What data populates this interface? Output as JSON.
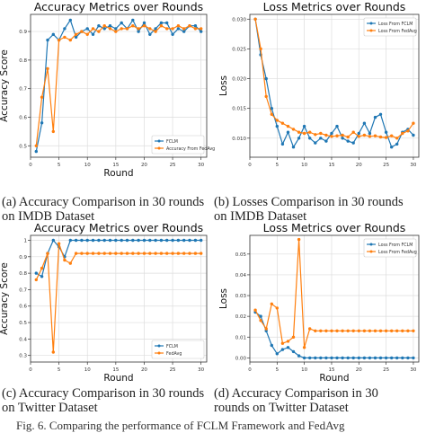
{
  "figure": {
    "captions": [
      {
        "line1": "(a) Accuracy Comparison in 30 rounds",
        "line2": "on IMDB Dataset"
      },
      {
        "line1": "(b) Losses Comparison in 30 rounds",
        "line2": "on IMDB Dataset"
      },
      {
        "line1": "(c) Accuracy Comparison in 30 rounds",
        "line2": "on Twitter Dataset"
      },
      {
        "line1": "(d)   Accuracy   Comparison   in   30",
        "line2": "rounds on Twitter Dataset"
      }
    ],
    "footer": "Fig. 6.  Comparing the performance of FCLM Framework and FedAvg"
  },
  "colors": {
    "fclm": "#1f77b4",
    "fedavg": "#ff7f0e"
  },
  "chart_data": [
    {
      "type": "line",
      "title": "Accuracy Metrics over Rounds",
      "xlabel": "Round",
      "ylabel": "Accuracy Score",
      "xlim": [
        0,
        31
      ],
      "ylim": [
        0.46,
        0.96
      ],
      "xticks": [
        0,
        5,
        10,
        15,
        20,
        25,
        30
      ],
      "yticks": [
        0.5,
        0.6,
        0.7,
        0.8,
        0.9
      ],
      "grid": true,
      "legend": "lower-right",
      "x": [
        1,
        2,
        3,
        4,
        5,
        6,
        7,
        8,
        9,
        10,
        11,
        12,
        13,
        14,
        15,
        16,
        17,
        18,
        19,
        20,
        21,
        22,
        23,
        24,
        25,
        26,
        27,
        28,
        29,
        30
      ],
      "series": [
        {
          "name": "FCLM",
          "color": "#1f77b4",
          "values": [
            0.48,
            0.58,
            0.87,
            0.89,
            0.87,
            0.91,
            0.94,
            0.88,
            0.9,
            0.91,
            0.89,
            0.92,
            0.91,
            0.92,
            0.91,
            0.93,
            0.91,
            0.94,
            0.9,
            0.93,
            0.89,
            0.91,
            0.93,
            0.93,
            0.89,
            0.91,
            0.9,
            0.92,
            0.92,
            0.9
          ]
        },
        {
          "name": "Accuracy From FedAvg",
          "color": "#ff7f0e",
          "values": [
            0.5,
            0.67,
            0.77,
            0.55,
            0.87,
            0.88,
            0.87,
            0.89,
            0.9,
            0.89,
            0.91,
            0.9,
            0.92,
            0.91,
            0.9,
            0.91,
            0.91,
            0.92,
            0.91,
            0.92,
            0.91,
            0.9,
            0.92,
            0.91,
            0.91,
            0.92,
            0.91,
            0.92,
            0.91,
            0.91
          ]
        }
      ]
    },
    {
      "type": "line",
      "title": "Loss Metrics over Rounds",
      "xlabel": "",
      "ylabel": "Loss",
      "xlim": [
        0,
        31
      ],
      "ylim": [
        0.0068,
        0.0308
      ],
      "xticks": [
        0,
        5,
        10,
        15,
        20,
        25,
        30
      ],
      "yticks": [
        0.01,
        0.015,
        0.02,
        0.025,
        0.03
      ],
      "ytick_labels": [
        "0.010",
        "0.015",
        "0.020",
        "0.025",
        "0.030"
      ],
      "grid": true,
      "legend": "top-right",
      "x": [
        1,
        2,
        3,
        4,
        5,
        6,
        7,
        8,
        9,
        10,
        11,
        12,
        13,
        14,
        15,
        16,
        17,
        18,
        19,
        20,
        21,
        22,
        23,
        24,
        25,
        26,
        27,
        28,
        29,
        30
      ],
      "series": [
        {
          "name": "Loss From FCLM",
          "color": "#1f77b4",
          "values": [
            0.03,
            0.024,
            0.02,
            0.015,
            0.012,
            0.009,
            0.011,
            0.0085,
            0.01,
            0.012,
            0.01,
            0.0092,
            0.01,
            0.0095,
            0.0108,
            0.012,
            0.01,
            0.0095,
            0.0092,
            0.0108,
            0.0125,
            0.0108,
            0.0135,
            0.014,
            0.011,
            0.0085,
            0.009,
            0.011,
            0.0115,
            0.0105
          ]
        },
        {
          "name": "Loss From FedAvg",
          "color": "#ff7f0e",
          "values": [
            0.03,
            0.025,
            0.017,
            0.014,
            0.013,
            0.0125,
            0.012,
            0.0115,
            0.011,
            0.0108,
            0.011,
            0.0106,
            0.0108,
            0.0105,
            0.0103,
            0.0104,
            0.0105,
            0.0102,
            0.011,
            0.0103,
            0.0105,
            0.0103,
            0.0104,
            0.0102,
            0.0101,
            0.0104,
            0.01,
            0.0108,
            0.0112,
            0.0125
          ]
        }
      ]
    },
    {
      "type": "line",
      "title": "Accuracy Metrics over Rounds",
      "xlabel": "Round",
      "ylabel": "Accuracy Score",
      "xlim": [
        0,
        31
      ],
      "ylim": [
        0.26,
        1.03
      ],
      "xticks": [
        0,
        5,
        10,
        15,
        20,
        25,
        30
      ],
      "yticks": [
        0.3,
        0.4,
        0.5,
        0.6,
        0.7,
        0.8,
        0.9,
        1.0
      ],
      "grid": true,
      "legend": "lower-right",
      "x": [
        1,
        2,
        3,
        4,
        5,
        6,
        7,
        8,
        9,
        10,
        11,
        12,
        13,
        14,
        15,
        16,
        17,
        18,
        19,
        20,
        21,
        22,
        23,
        24,
        25,
        26,
        27,
        28,
        29,
        30
      ],
      "series": [
        {
          "name": "FCLM",
          "color": "#1f77b4",
          "values": [
            0.8,
            0.78,
            0.92,
            1.0,
            0.96,
            0.9,
            1.0,
            1.0,
            1.0,
            1.0,
            1.0,
            1.0,
            1.0,
            1.0,
            1.0,
            1.0,
            1.0,
            1.0,
            1.0,
            1.0,
            1.0,
            1.0,
            1.0,
            1.0,
            1.0,
            1.0,
            1.0,
            1.0,
            1.0,
            1.0
          ]
        },
        {
          "name": "FedAvg",
          "color": "#ff7f0e",
          "values": [
            0.76,
            0.83,
            0.92,
            0.32,
            0.98,
            0.88,
            0.86,
            0.92,
            0.92,
            0.92,
            0.92,
            0.92,
            0.92,
            0.92,
            0.92,
            0.92,
            0.92,
            0.92,
            0.92,
            0.92,
            0.92,
            0.92,
            0.92,
            0.92,
            0.92,
            0.92,
            0.92,
            0.92,
            0.92,
            0.92
          ]
        }
      ]
    },
    {
      "type": "line",
      "title": "Loss Metrics over Rounds",
      "xlabel": "Round",
      "ylabel": "Loss",
      "xlim": [
        0,
        31
      ],
      "ylim": [
        -0.002,
        0.059
      ],
      "xticks": [
        0,
        5,
        10,
        15,
        20,
        25,
        30
      ],
      "yticks": [
        0.0,
        0.01,
        0.02,
        0.03,
        0.04,
        0.05
      ],
      "ytick_labels": [
        "0.00",
        "0.01",
        "0.02",
        "0.03",
        "0.04",
        "0.05"
      ],
      "grid": true,
      "legend": "top-right",
      "x": [
        1,
        2,
        3,
        4,
        5,
        6,
        7,
        8,
        9,
        10,
        11,
        12,
        13,
        14,
        15,
        16,
        17,
        18,
        19,
        20,
        21,
        22,
        23,
        24,
        25,
        26,
        27,
        28,
        29,
        30
      ],
      "series": [
        {
          "name": "Loss From FCLM",
          "color": "#1f77b4",
          "values": [
            0.022,
            0.02,
            0.013,
            0.006,
            0.002,
            0.004,
            0.005,
            0.003,
            0.001,
            0.0,
            0.0,
            0.0,
            0.0,
            0.0,
            0.0,
            0.0,
            0.0,
            0.0,
            0.0,
            0.0,
            0.0,
            0.0,
            0.0,
            0.0,
            0.0,
            0.0,
            0.0,
            0.0,
            0.0,
            0.0
          ]
        },
        {
          "name": "Loss From FedAvg",
          "color": "#ff7f0e",
          "values": [
            0.023,
            0.018,
            0.014,
            0.026,
            0.024,
            0.007,
            0.008,
            0.01,
            0.057,
            0.005,
            0.014,
            0.013,
            0.013,
            0.013,
            0.013,
            0.013,
            0.013,
            0.013,
            0.013,
            0.013,
            0.013,
            0.013,
            0.013,
            0.013,
            0.013,
            0.013,
            0.013,
            0.013,
            0.013,
            0.013
          ]
        }
      ]
    }
  ]
}
